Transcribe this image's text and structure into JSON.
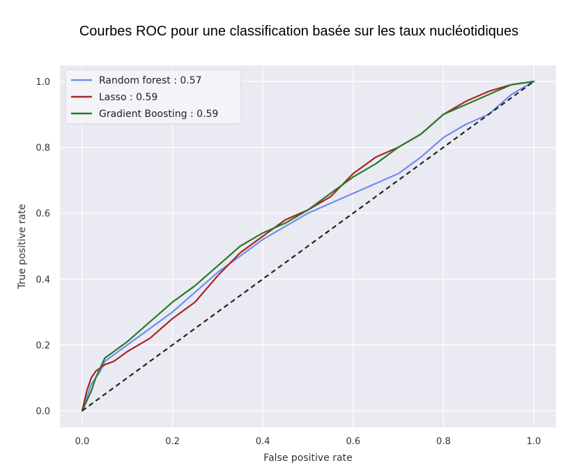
{
  "chart_data": {
    "type": "line",
    "title": "Courbes ROC pour une classification basée sur les taux nucléotidiques",
    "xlabel": "False positive rate",
    "ylabel": "True positive rate",
    "xlim": [
      0.0,
      1.0
    ],
    "ylim": [
      0.0,
      1.0
    ],
    "xticks": [
      "0.0",
      "0.2",
      "0.4",
      "0.6",
      "0.8",
      "1.0"
    ],
    "yticks": [
      "0.0",
      "0.2",
      "0.4",
      "0.6",
      "0.8",
      "1.0"
    ],
    "grid": true,
    "legend_position": "top-left",
    "series": [
      {
        "name": "Random forest : 0.57",
        "color": "#6d8ef0",
        "x": [
          0.0,
          0.01,
          0.02,
          0.03,
          0.04,
          0.05,
          0.07,
          0.1,
          0.15,
          0.2,
          0.25,
          0.3,
          0.35,
          0.4,
          0.45,
          0.5,
          0.55,
          0.6,
          0.65,
          0.7,
          0.75,
          0.8,
          0.85,
          0.9,
          0.95,
          1.0
        ],
        "y": [
          0.0,
          0.04,
          0.08,
          0.1,
          0.12,
          0.15,
          0.17,
          0.2,
          0.25,
          0.3,
          0.36,
          0.42,
          0.47,
          0.52,
          0.56,
          0.6,
          0.63,
          0.66,
          0.69,
          0.72,
          0.77,
          0.83,
          0.87,
          0.9,
          0.96,
          1.0
        ]
      },
      {
        "name": "Lasso : 0.59",
        "color": "#a82424",
        "x": [
          0.0,
          0.01,
          0.02,
          0.03,
          0.05,
          0.07,
          0.1,
          0.15,
          0.2,
          0.25,
          0.3,
          0.35,
          0.4,
          0.45,
          0.5,
          0.55,
          0.6,
          0.65,
          0.7,
          0.75,
          0.8,
          0.85,
          0.9,
          0.95,
          1.0
        ],
        "y": [
          0.0,
          0.06,
          0.1,
          0.12,
          0.14,
          0.15,
          0.18,
          0.22,
          0.28,
          0.33,
          0.41,
          0.48,
          0.53,
          0.58,
          0.61,
          0.65,
          0.72,
          0.77,
          0.8,
          0.84,
          0.9,
          0.94,
          0.97,
          0.99,
          1.0
        ]
      },
      {
        "name": "Gradient Boosting : 0.59",
        "color": "#267a26",
        "x": [
          0.0,
          0.01,
          0.02,
          0.03,
          0.04,
          0.05,
          0.07,
          0.1,
          0.15,
          0.2,
          0.25,
          0.3,
          0.35,
          0.4,
          0.45,
          0.5,
          0.55,
          0.6,
          0.65,
          0.7,
          0.75,
          0.8,
          0.85,
          0.9,
          0.95,
          1.0
        ],
        "y": [
          0.0,
          0.03,
          0.06,
          0.1,
          0.13,
          0.16,
          0.18,
          0.21,
          0.27,
          0.33,
          0.38,
          0.44,
          0.5,
          0.54,
          0.57,
          0.61,
          0.66,
          0.71,
          0.75,
          0.8,
          0.84,
          0.9,
          0.93,
          0.96,
          0.99,
          1.0
        ]
      }
    ],
    "reference_line": {
      "x": [
        0.0,
        1.0
      ],
      "y": [
        0.0,
        1.0
      ],
      "style": "dashed",
      "color": "#222222"
    }
  },
  "colors": {
    "plot_background": "#eaeaf2",
    "grid": "#ffffff"
  }
}
